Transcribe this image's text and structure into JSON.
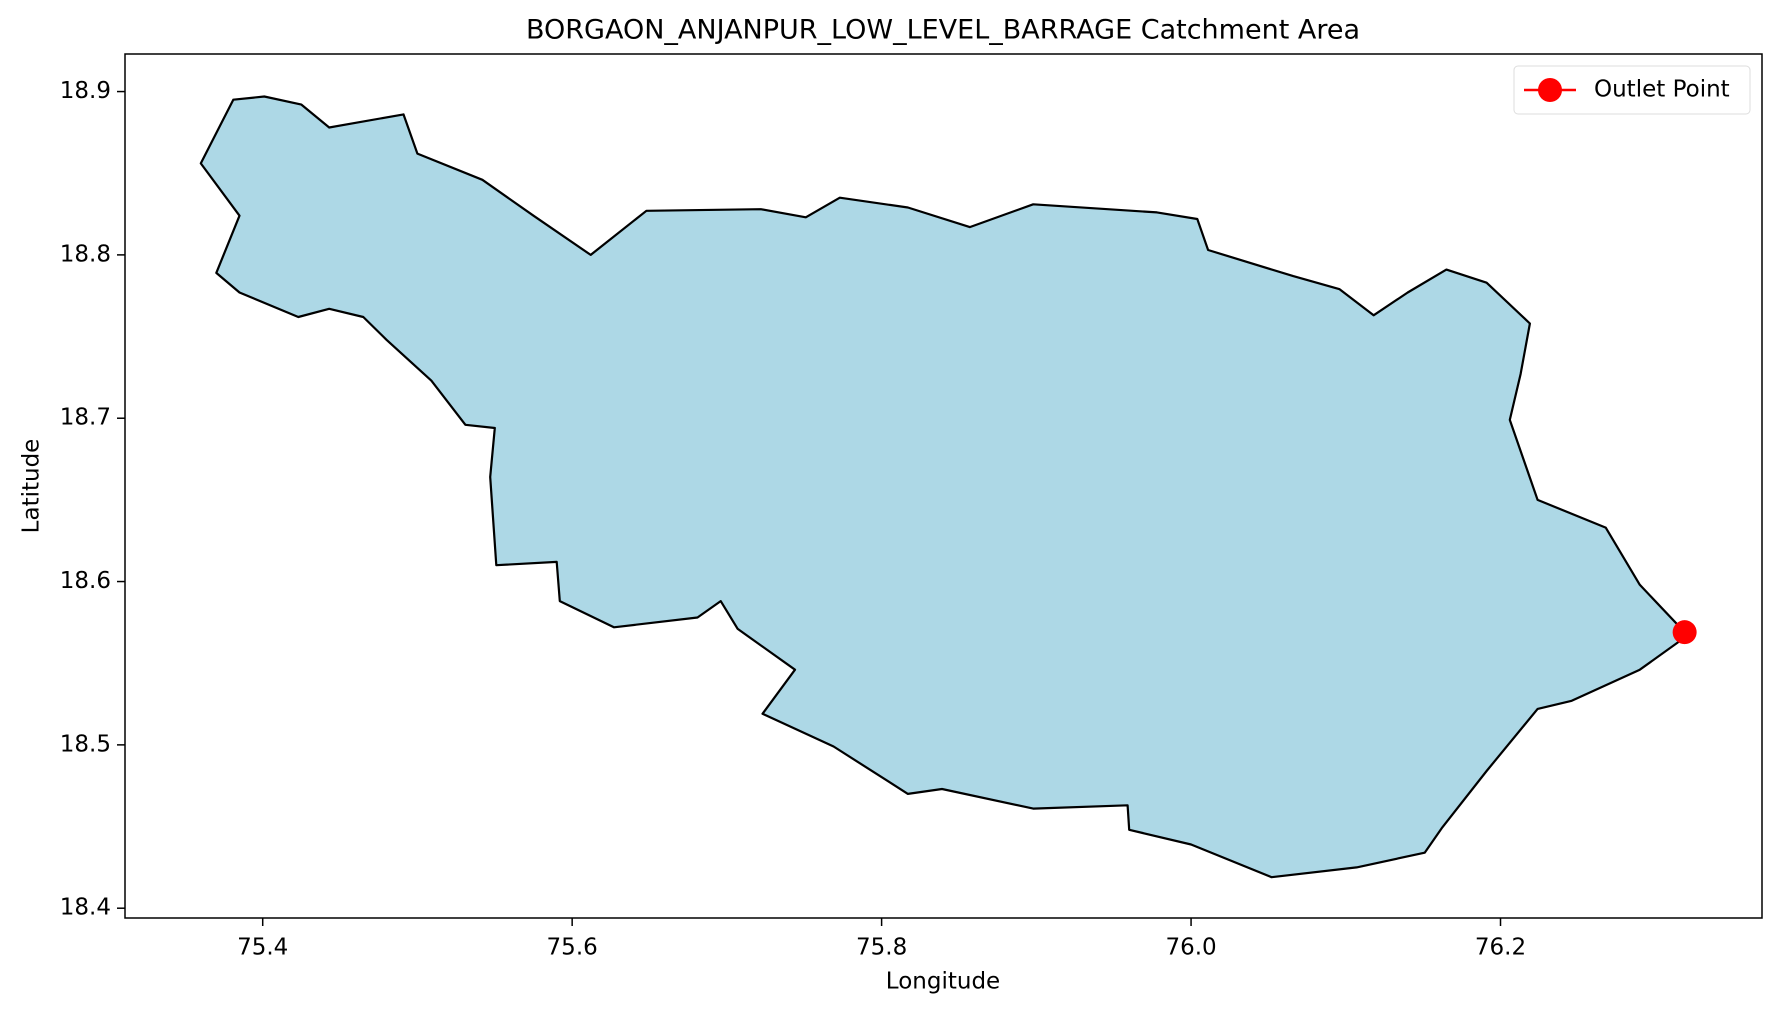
{
  "chart_data": {
    "type": "map",
    "title": "BORGAON_ANJANPUR_LOW_LEVEL_BARRAGE Catchment Area",
    "x_label": "Longitude",
    "y_label": "Latitude",
    "xlim": [
      75.311,
      76.369
    ],
    "ylim": [
      18.394,
      18.923
    ],
    "xticks": [
      75.4,
      75.6,
      75.8,
      {
        "value": 76,
        "label": "76.0"
      },
      76.2
    ],
    "yticks": [
      18.4,
      18.5,
      18.6,
      18.7,
      18.8,
      18.9
    ],
    "boundary": {
      "color": "#add8e6",
      "edgecolor": "#000000",
      "lon": [
        75.36,
        75.381,
        75.401,
        75.425,
        75.443,
        75.491,
        75.5,
        75.542,
        75.575,
        75.612,
        75.648,
        75.722,
        75.751,
        75.773,
        75.817,
        75.857,
        75.898,
        75.978,
        76.004,
        76.011,
        76.066,
        76.096,
        76.118,
        76.14,
        76.165,
        76.191,
        76.219,
        76.213,
        76.206,
        76.224,
        76.268,
        76.29,
        76.321,
        76.29,
        76.246,
        76.224,
        76.191,
        76.162,
        76.151,
        76.107,
        76.052,
        76.0,
        75.96,
        75.959,
        75.898,
        75.839,
        75.817,
        75.769,
        75.723,
        75.744,
        75.707,
        75.696,
        75.681,
        75.627,
        75.592,
        75.59,
        75.551,
        75.547,
        75.55,
        75.531,
        75.509,
        75.48,
        75.465,
        75.443,
        75.423,
        75.385,
        75.37,
        75.385
      ],
      "lat": [
        18.856,
        18.895,
        18.897,
        18.892,
        18.878,
        18.886,
        18.862,
        18.846,
        18.824,
        18.8,
        18.827,
        18.828,
        18.823,
        18.835,
        18.829,
        18.817,
        18.831,
        18.826,
        18.822,
        18.803,
        18.787,
        18.779,
        18.763,
        18.777,
        18.791,
        18.783,
        18.758,
        18.727,
        18.699,
        18.65,
        18.633,
        18.598,
        18.567,
        18.546,
        18.527,
        18.522,
        18.484,
        18.449,
        18.434,
        18.425,
        18.419,
        18.439,
        18.448,
        18.463,
        18.461,
        18.473,
        18.47,
        18.499,
        18.519,
        18.546,
        18.571,
        18.588,
        18.578,
        18.572,
        18.588,
        18.612,
        18.61,
        18.664,
        18.694,
        18.696,
        18.723,
        18.748,
        18.762,
        18.767,
        18.762,
        18.777,
        18.789,
        18.824
      ]
    },
    "series": [
      {
        "name": "Outlet Point",
        "color": "#ff0000",
        "x": [
          76.319
        ],
        "y": [
          18.569
        ]
      }
    ],
    "legend": "upper right"
  }
}
